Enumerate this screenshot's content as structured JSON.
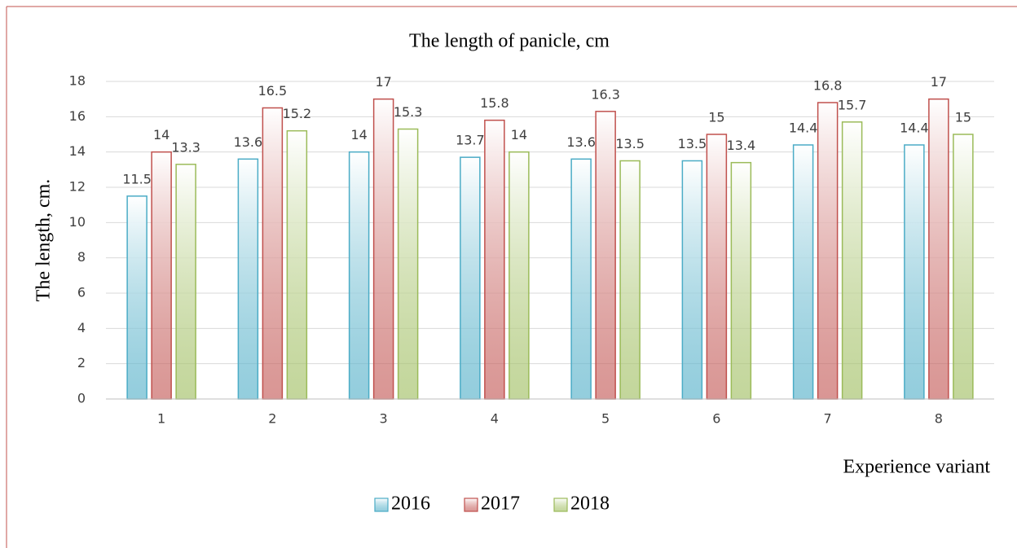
{
  "chart_data": {
    "type": "bar",
    "title": "The length of panicle, cm",
    "x_label": "Experience variant",
    "y_label": "The length, cm.",
    "categories": [
      "1",
      "2",
      "3",
      "4",
      "5",
      "6",
      "7",
      "8"
    ],
    "series": [
      {
        "name": "2016",
        "color": "#4bacc6",
        "values": [
          11.5,
          13.6,
          14,
          13.7,
          13.6,
          13.5,
          14.4,
          14.4
        ]
      },
      {
        "name": "2017",
        "color": "#c0504d",
        "values": [
          14,
          16.5,
          17,
          15.8,
          16.3,
          15,
          16.8,
          17
        ]
      },
      {
        "name": "2018",
        "color": "#9bbb59",
        "values": [
          13.3,
          15.2,
          15.3,
          14,
          13.5,
          13.4,
          15.7,
          15
        ]
      }
    ],
    "ylim": [
      0,
      18
    ],
    "yticks": [
      0,
      2,
      4,
      6,
      8,
      10,
      12,
      14,
      16,
      18
    ],
    "grid": true,
    "legend": "bottom"
  }
}
